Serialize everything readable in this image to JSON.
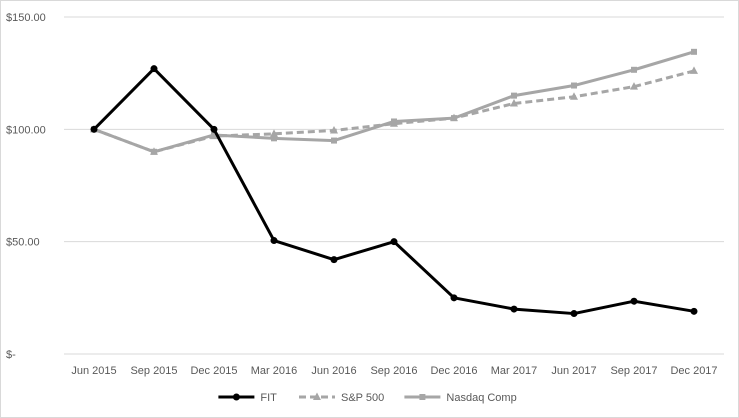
{
  "chart_data": {
    "type": "line",
    "title": "",
    "xlabel": "",
    "ylabel": "",
    "categories": [
      "Jun 2015",
      "Sep 2015",
      "Dec 2015",
      "Mar 2016",
      "Jun 2016",
      "Sep 2016",
      "Dec 2016",
      "Mar 2017",
      "Jun 2017",
      "Sep 2017",
      "Dec 2017"
    ],
    "ylim": [
      0,
      150
    ],
    "y_ticks": [
      {
        "value": 0,
        "label": "$-"
      },
      {
        "value": 50,
        "label": "$50.00"
      },
      {
        "value": 100,
        "label": "$100.00"
      },
      {
        "value": 150,
        "label": "$150.00"
      }
    ],
    "grid": true,
    "legend_position": "bottom",
    "series": [
      {
        "name": "FIT",
        "color": "#000000",
        "style": "solid",
        "marker": "circle",
        "values": [
          100,
          127,
          100,
          50.5,
          42,
          50,
          25,
          20,
          18,
          23.5,
          19
        ]
      },
      {
        "name": "S&P 500",
        "color": "#a6a6a6",
        "style": "dashed",
        "marker": "triangle",
        "values": [
          100,
          90,
          97,
          98,
          99.5,
          102.5,
          105,
          111.5,
          114.5,
          119,
          126
        ]
      },
      {
        "name": "Nasdaq Comp",
        "color": "#a6a6a6",
        "style": "solid",
        "marker": "square",
        "values": [
          100,
          90,
          97.5,
          96,
          95,
          103.5,
          105,
          115,
          119.5,
          126.5,
          134.5
        ]
      }
    ]
  }
}
